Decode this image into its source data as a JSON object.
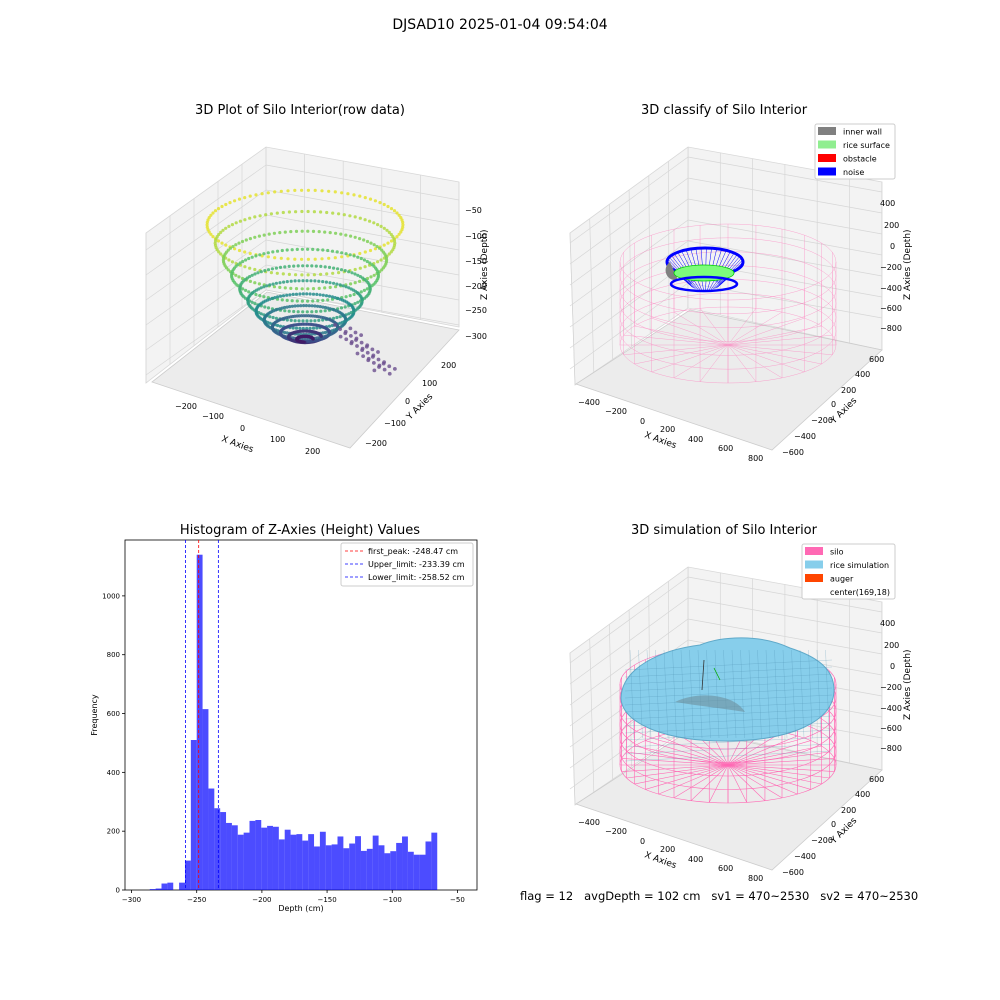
{
  "figure": {
    "suptitle": "DJSAD10 2025-01-04 09:54:04",
    "footer": "flag = 12   avgDepth = 102 cm   sv1 = 470~2530   sv2 = 470~2530"
  },
  "panels": {
    "raw": {
      "title": "3D Plot of Silo Interior(row data)",
      "xlabel": "X Axies",
      "ylabel": "Y Axies",
      "zlabel": "Z Axies (Depth)",
      "xticks": [
        "−200",
        "−100",
        "0",
        "100",
        "200"
      ],
      "yticks": [
        "−200",
        "−100",
        "0",
        "100",
        "200"
      ],
      "zticks": [
        "−50",
        "−100",
        "−150",
        "−200",
        "−250",
        "−300"
      ]
    },
    "classify": {
      "title": "3D classify of Silo Interior",
      "xlabel": "X Axies",
      "ylabel": "Y Axies",
      "zlabel": "Z Axies (Depth)",
      "xticks": [
        "−400",
        "−200",
        "0",
        "200",
        "400",
        "600",
        "800"
      ],
      "yticks": [
        "−600",
        "−400",
        "−200",
        "0",
        "200",
        "400",
        "600"
      ],
      "zticks": [
        "400",
        "200",
        "0",
        "−200",
        "−400",
        "−600",
        "−800"
      ],
      "legend": [
        {
          "label": "inner wall",
          "color": "#808080"
        },
        {
          "label": "rice surface",
          "color": "#90ee90"
        },
        {
          "label": "obstacle",
          "color": "#ff0000"
        },
        {
          "label": "noise",
          "color": "#0000ff"
        }
      ]
    },
    "simulation": {
      "title": "3D simulation of Silo Interior",
      "xlabel": "X Axies",
      "ylabel": "Y Axies",
      "zlabel": "Z Axies (Depth)",
      "xticks": [
        "−400",
        "−200",
        "0",
        "200",
        "400",
        "600",
        "800"
      ],
      "yticks": [
        "−600",
        "−400",
        "−200",
        "0",
        "200",
        "400",
        "600"
      ],
      "zticks": [
        "400",
        "200",
        "0",
        "−200",
        "−400",
        "−600",
        "−800"
      ],
      "legend": [
        {
          "label": "silo",
          "color": "#ff69b4"
        },
        {
          "label": "rice simulation",
          "color": "#87ceeb"
        },
        {
          "label": "auger",
          "color": "#ff4500"
        },
        {
          "label": "center(169,18)",
          "color": ""
        }
      ]
    }
  },
  "chart_data": {
    "type": "bar",
    "title": "Histogram of Z-Axies (Height) Values",
    "xlabel": "Depth (cm)",
    "ylabel": "Frequency",
    "xlim": [
      -305,
      -35
    ],
    "ylim": [
      0,
      1190
    ],
    "xticks": [
      -300,
      -250,
      -200,
      -150,
      -100,
      -50
    ],
    "yticks": [
      0,
      200,
      400,
      600,
      800,
      1000
    ],
    "bar_color": "#0000ff",
    "bin_width": 4.5,
    "bin_starts": [
      -286,
      -281.5,
      -277,
      -272.5,
      -268,
      -263.5,
      -259,
      -254.5,
      -250,
      -245.5,
      -241,
      -236.5,
      -232,
      -227.5,
      -223,
      -218.5,
      -214,
      -209.5,
      -205,
      -200.5,
      -196,
      -191.5,
      -187,
      -182.5,
      -178,
      -173.5,
      -169,
      -164.5,
      -160,
      -155.5,
      -151,
      -146.5,
      -142,
      -137.5,
      -133,
      -128.5,
      -124,
      -119.5,
      -115,
      -110.5,
      -106,
      -101.5,
      -97,
      -92.5,
      -88,
      -83.5,
      -79,
      -74.5,
      -70,
      -65.5,
      -61,
      -56.5,
      -52,
      -47.5
    ],
    "values": [
      3,
      5,
      22,
      25,
      0,
      25,
      100,
      510,
      1140,
      615,
      345,
      278,
      265,
      228,
      220,
      188,
      195,
      235,
      238,
      212,
      218,
      215,
      172,
      205,
      188,
      190,
      168,
      190,
      148,
      198,
      152,
      155,
      182,
      142,
      158,
      183,
      133,
      140,
      185,
      152,
      125,
      132,
      160,
      182,
      130,
      120,
      120,
      165,
      195,
      0,
      0,
      0,
      0,
      0
    ],
    "lines": [
      {
        "label": "first_peak: -248.47 cm",
        "x": -248.47,
        "color": "#ff0000"
      },
      {
        "label": "Upper_limit: -233.39 cm",
        "x": -233.39,
        "color": "#0000ff"
      },
      {
        "label": "Lower_limit: -258.52 cm",
        "x": -258.52,
        "color": "#0000ff"
      }
    ],
    "legend_position": "top-right"
  }
}
